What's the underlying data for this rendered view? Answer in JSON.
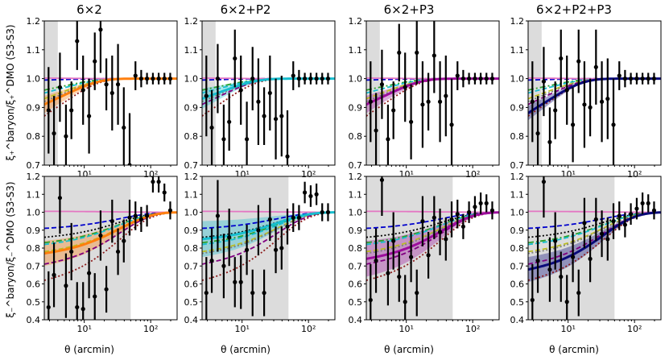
{
  "figure": {
    "titles": [
      "6×2",
      "6×2+P2",
      "6×2+P3",
      "6×2+P2+P3"
    ],
    "xlabel": "θ (arcmin)",
    "ylabel_top": "ξ₊^baryon/ξ₊^DMO (S3-S3)",
    "ylabel_bottom": "ξ₋^baryon/ξ₋^DMO (S3-S3)"
  },
  "chart_data": {
    "type": "line",
    "layout": "2 rows × 4 columns",
    "x_scale": "log",
    "xlim": [
      2.5,
      250
    ],
    "ylim": [
      0.4,
      1.2
    ],
    "top_row_ylim": [
      0.7,
      1.2
    ],
    "bottom_row_ylim": [
      0.4,
      1.2
    ],
    "x_tick_labels": [
      "10¹",
      "10²"
    ],
    "y_tick_labels_top": [
      "0.7",
      "0.8",
      "0.9",
      "1.0",
      "1.1",
      "1.2"
    ],
    "y_tick_labels_bottom": [
      "0.4",
      "0.5",
      "0.6",
      "0.7",
      "0.8",
      "0.9",
      "1.0",
      "1.1",
      "1.2"
    ],
    "shaded_scale_cut_top_arcmin": 4,
    "shaded_scale_cut_bottom_arcmin": 50,
    "reference_line_y": 1.0,
    "panel_accent_colors": [
      "#ff7f0e",
      "#17becf",
      "#9c0d9c",
      "#0a0a7a"
    ],
    "data_points_x_arcmin": [
      2.9,
      3.5,
      4.3,
      5.3,
      6.4,
      7.8,
      9.6,
      11.8,
      14.4,
      17.6,
      21.5,
      26.3,
      32.2,
      39.4,
      48.2,
      59,
      72,
      88,
      108,
      132,
      161,
      197
    ],
    "panels": [
      {
        "row": 0,
        "col": 0,
        "points_y": [
          0.89,
          0.81,
          0.97,
          0.8,
          0.89,
          1.13,
          0.96,
          0.87,
          1.06,
          1.17,
          0.98,
          0.95,
          0.98,
          0.83,
          0.7,
          1.01,
          1.0,
          1.0,
          1.0,
          1.0,
          1.0,
          1.0
        ],
        "errors": [
          0.15,
          0.13,
          0.12,
          0.11,
          0.1,
          0.1,
          0.12,
          0.13,
          0.1,
          0.15,
          0.09,
          0.13,
          0.14,
          0.14,
          0.18,
          0.05,
          0.03,
          0.02,
          0.02,
          0.02,
          0.02,
          0.02
        ]
      },
      {
        "row": 0,
        "col": 1,
        "points_y": [
          0.94,
          0.83,
          1.0,
          0.79,
          0.85,
          1.07,
          0.96,
          0.79,
          1.0,
          0.92,
          0.87,
          0.95,
          0.86,
          0.87,
          0.73,
          1.01,
          1.0,
          1.0,
          1.0,
          1.0,
          1.0,
          1.0
        ],
        "errors": [
          0.14,
          0.13,
          0.12,
          0.12,
          0.1,
          0.1,
          0.12,
          0.13,
          0.11,
          0.15,
          0.1,
          0.13,
          0.14,
          0.14,
          0.16,
          0.05,
          0.03,
          0.02,
          0.02,
          0.02,
          0.02,
          0.02
        ]
      },
      {
        "row": 0,
        "col": 2,
        "points_y": [
          0.92,
          0.82,
          0.98,
          0.79,
          0.89,
          1.09,
          0.97,
          0.85,
          1.09,
          0.91,
          0.92,
          1.08,
          0.92,
          0.94,
          0.84,
          1.01,
          1.0,
          1.0,
          1.0,
          1.0,
          1.0,
          1.0
        ],
        "errors": [
          0.14,
          0.13,
          0.12,
          0.12,
          0.1,
          0.1,
          0.12,
          0.13,
          0.11,
          0.15,
          0.1,
          0.13,
          0.14,
          0.14,
          0.16,
          0.05,
          0.03,
          0.02,
          0.02,
          0.02,
          0.02,
          0.02
        ]
      },
      {
        "row": 0,
        "col": 3,
        "points_y": [
          0.92,
          0.81,
          0.99,
          0.78,
          0.89,
          1.07,
          0.96,
          0.84,
          1.06,
          0.91,
          0.9,
          1.04,
          0.92,
          0.93,
          0.84,
          1.01,
          1.0,
          1.0,
          1.0,
          1.0,
          1.0,
          1.0
        ],
        "errors": [
          0.14,
          0.13,
          0.12,
          0.12,
          0.1,
          0.1,
          0.12,
          0.13,
          0.11,
          0.15,
          0.1,
          0.13,
          0.14,
          0.14,
          0.16,
          0.05,
          0.03,
          0.02,
          0.02,
          0.02,
          0.02,
          0.02
        ]
      },
      {
        "row": 1,
        "col": 0,
        "points_y": [
          0.47,
          0.65,
          1.08,
          0.59,
          0.78,
          0.47,
          0.46,
          0.66,
          0.53,
          0.87,
          0.57,
          0.95,
          0.78,
          0.84,
          0.97,
          0.98,
          0.96,
          0.98,
          1.17,
          1.17,
          1.11,
          1.01
        ],
        "errors": [
          0.2,
          0.18,
          0.2,
          0.18,
          0.16,
          0.14,
          0.15,
          0.14,
          0.13,
          0.14,
          0.13,
          0.12,
          0.13,
          0.12,
          0.1,
          0.08,
          0.07,
          0.06,
          0.06,
          0.06,
          0.05,
          0.05
        ]
      },
      {
        "row": 1,
        "col": 1,
        "points_y": [
          0.55,
          0.73,
          0.98,
          0.7,
          0.86,
          0.61,
          0.61,
          0.79,
          0.55,
          0.9,
          0.55,
          0.96,
          0.79,
          0.8,
          0.92,
          0.97,
          0.97,
          1.11,
          1.09,
          1.1,
          1.0,
          1.0
        ],
        "errors": [
          0.2,
          0.18,
          0.2,
          0.18,
          0.16,
          0.14,
          0.15,
          0.14,
          0.13,
          0.14,
          0.13,
          0.12,
          0.13,
          0.12,
          0.1,
          0.08,
          0.07,
          0.06,
          0.06,
          0.06,
          0.05,
          0.05
        ]
      },
      {
        "row": 1,
        "col": 2,
        "points_y": [
          0.51,
          0.73,
          1.18,
          0.66,
          0.84,
          0.64,
          0.5,
          0.75,
          0.55,
          0.95,
          0.76,
          0.97,
          0.89,
          0.85,
          0.96,
          0.99,
          0.92,
          1.0,
          1.03,
          1.05,
          1.05,
          1.01
        ],
        "errors": [
          0.2,
          0.18,
          0.2,
          0.18,
          0.16,
          0.14,
          0.15,
          0.14,
          0.13,
          0.14,
          0.13,
          0.12,
          0.13,
          0.12,
          0.1,
          0.08,
          0.07,
          0.06,
          0.06,
          0.06,
          0.05,
          0.05
        ]
      },
      {
        "row": 1,
        "col": 3,
        "points_y": [
          0.51,
          0.73,
          1.17,
          0.68,
          0.84,
          0.64,
          0.5,
          0.75,
          0.55,
          0.94,
          0.74,
          0.96,
          0.88,
          0.85,
          0.95,
          0.98,
          0.93,
          0.99,
          1.02,
          1.05,
          1.05,
          1.01
        ],
        "errors": [
          0.2,
          0.18,
          0.2,
          0.18,
          0.16,
          0.14,
          0.15,
          0.14,
          0.13,
          0.14,
          0.13,
          0.12,
          0.13,
          0.12,
          0.1,
          0.08,
          0.07,
          0.06,
          0.06,
          0.06,
          0.05,
          0.05
        ]
      }
    ],
    "model_curves_top": [
      {
        "color": "#0000cc",
        "dash": "dashed",
        "y_at_min": 0.995
      },
      {
        "color": "#2ca02c",
        "dash": "dashdot",
        "y_at_min": 0.96
      },
      {
        "color": "#17becf",
        "dash": "dashed",
        "y_at_min": 0.95
      },
      {
        "color": "#bcbd22",
        "dash": "dashed",
        "y_at_min": 0.93
      },
      {
        "color": "#7f7f7f",
        "dash": "dotted",
        "y_at_min": 0.92
      },
      {
        "color": "#800080",
        "dash": "dashed",
        "y_at_min": 0.91
      },
      {
        "color": "#8c1a1a",
        "dash": "dotted",
        "y_at_min": 0.87
      },
      {
        "color": "#e377c2",
        "dash": "solid",
        "y_at_min": 1.002
      }
    ],
    "model_curves_bottom": [
      {
        "color": "#0000cc",
        "dash": "dashed",
        "y_at_min": 0.91
      },
      {
        "color": "#000000",
        "dash": "dotted",
        "y_at_min": 0.86
      },
      {
        "color": "#2ca02c",
        "dash": "dashdot",
        "y_at_min": 0.83
      },
      {
        "color": "#17becf",
        "dash": "dashed",
        "y_at_min": 0.82
      },
      {
        "color": "#bcbd22",
        "dash": "dashed",
        "y_at_min": 0.78
      },
      {
        "color": "#7f7f7f",
        "dash": "dotted",
        "y_at_min": 0.77
      },
      {
        "color": "#800080",
        "dash": "dashed",
        "y_at_min": 0.71
      },
      {
        "color": "#8c1a1a",
        "dash": "dotted",
        "y_at_min": 0.62
      },
      {
        "color": "#e377c2",
        "dash": "solid",
        "y_at_min": 1.005
      }
    ],
    "best_fit": [
      {
        "col": 0,
        "top_at_min": 0.91,
        "bottom_at_min": 0.77,
        "band_top": 0.03,
        "band_bottom": 0.07
      },
      {
        "col": 1,
        "top_at_min": 0.93,
        "bottom_at_min": 0.85,
        "band_top": 0.035,
        "band_bottom": 0.1
      },
      {
        "col": 2,
        "top_at_min": 0.91,
        "bottom_at_min": 0.74,
        "band_top": 0.03,
        "band_bottom": 0.1
      },
      {
        "col": 3,
        "top_at_min": 0.88,
        "bottom_at_min": 0.68,
        "band_top": 0.025,
        "band_bottom": 0.07
      }
    ]
  }
}
